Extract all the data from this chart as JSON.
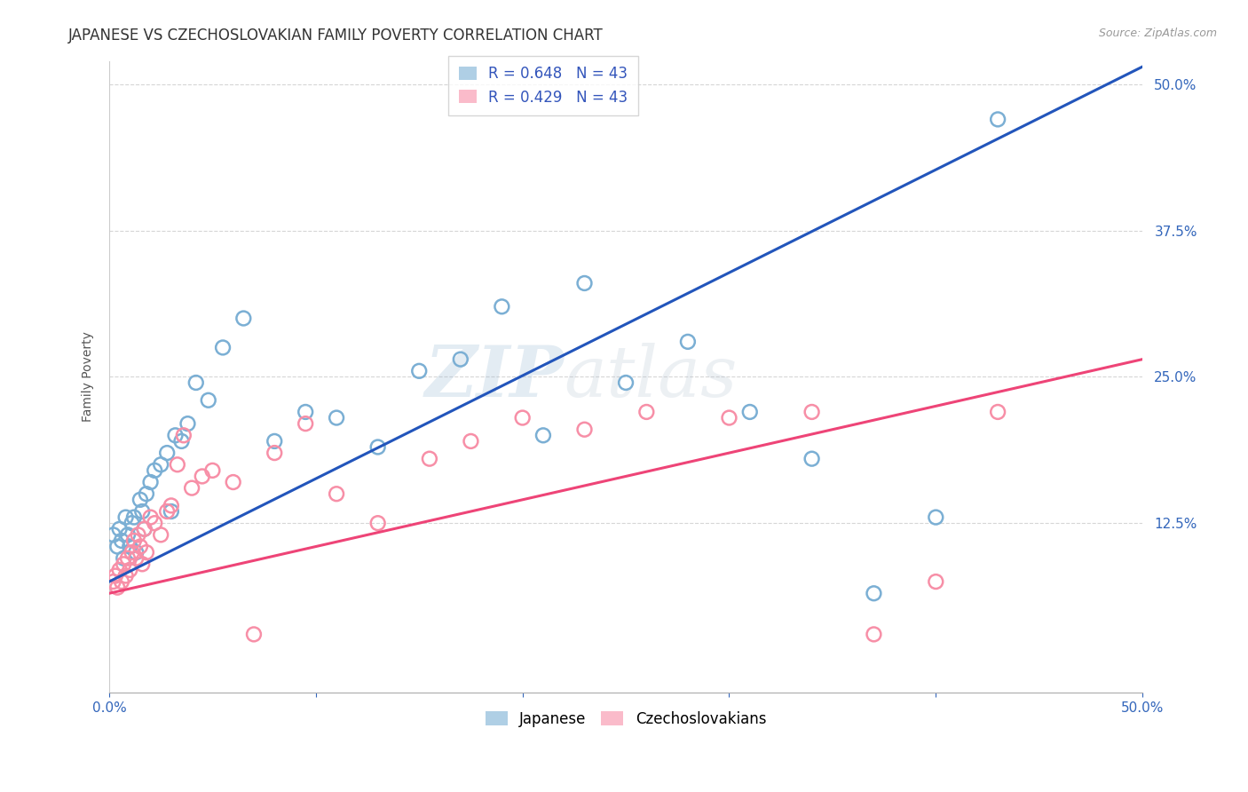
{
  "title": "JAPANESE VS CZECHOSLOVAKIAN FAMILY POVERTY CORRELATION CHART",
  "source": "Source: ZipAtlas.com",
  "ylabel": "Family Poverty",
  "xlim": [
    0.0,
    0.5
  ],
  "ylim": [
    -0.02,
    0.52
  ],
  "yticks": [
    0.125,
    0.25,
    0.375,
    0.5
  ],
  "yticklabels": [
    "12.5%",
    "25.0%",
    "37.5%",
    "50.0%"
  ],
  "legend_r_blue": "R = 0.648",
  "legend_n_blue": "N = 43",
  "legend_r_pink": "R = 0.429",
  "legend_n_pink": "N = 43",
  "blue_color": "#7BAFD4",
  "pink_color": "#F78FA7",
  "blue_line_color": "#2255BB",
  "pink_line_color": "#EE4477",
  "watermark_zip": "ZIP",
  "watermark_atlas": "atlas",
  "japanese_x": [
    0.002,
    0.004,
    0.005,
    0.006,
    0.007,
    0.008,
    0.009,
    0.01,
    0.011,
    0.012,
    0.013,
    0.015,
    0.016,
    0.017,
    0.018,
    0.02,
    0.022,
    0.025,
    0.028,
    0.03,
    0.032,
    0.035,
    0.038,
    0.042,
    0.048,
    0.055,
    0.065,
    0.08,
    0.095,
    0.11,
    0.13,
    0.15,
    0.17,
    0.19,
    0.21,
    0.23,
    0.25,
    0.28,
    0.31,
    0.34,
    0.37,
    0.4,
    0.43
  ],
  "japanese_y": [
    0.115,
    0.105,
    0.12,
    0.11,
    0.095,
    0.13,
    0.115,
    0.105,
    0.125,
    0.13,
    0.1,
    0.145,
    0.135,
    0.12,
    0.15,
    0.16,
    0.17,
    0.175,
    0.185,
    0.135,
    0.2,
    0.195,
    0.21,
    0.245,
    0.23,
    0.275,
    0.3,
    0.195,
    0.22,
    0.215,
    0.19,
    0.255,
    0.265,
    0.31,
    0.2,
    0.33,
    0.245,
    0.28,
    0.22,
    0.18,
    0.065,
    0.13,
    0.47
  ],
  "czech_x": [
    0.002,
    0.003,
    0.004,
    0.005,
    0.006,
    0.007,
    0.008,
    0.009,
    0.01,
    0.011,
    0.012,
    0.013,
    0.014,
    0.015,
    0.016,
    0.017,
    0.018,
    0.02,
    0.022,
    0.025,
    0.028,
    0.03,
    0.033,
    0.036,
    0.04,
    0.045,
    0.05,
    0.06,
    0.07,
    0.08,
    0.095,
    0.11,
    0.13,
    0.155,
    0.175,
    0.2,
    0.23,
    0.26,
    0.3,
    0.34,
    0.37,
    0.4,
    0.43
  ],
  "czech_y": [
    0.075,
    0.08,
    0.07,
    0.085,
    0.075,
    0.09,
    0.08,
    0.095,
    0.085,
    0.1,
    0.11,
    0.095,
    0.115,
    0.105,
    0.09,
    0.12,
    0.1,
    0.13,
    0.125,
    0.115,
    0.135,
    0.14,
    0.175,
    0.2,
    0.155,
    0.165,
    0.17,
    0.16,
    0.03,
    0.185,
    0.21,
    0.15,
    0.125,
    0.18,
    0.195,
    0.215,
    0.205,
    0.22,
    0.215,
    0.22,
    0.03,
    0.075,
    0.22
  ],
  "grid_color": "#CCCCCC",
  "background_color": "#FFFFFF",
  "title_fontsize": 12,
  "axis_label_fontsize": 10,
  "tick_fontsize": 11,
  "legend_fontsize": 12,
  "blue_intercept": 0.075,
  "blue_slope": 0.88,
  "pink_intercept": 0.065,
  "pink_slope": 0.4
}
